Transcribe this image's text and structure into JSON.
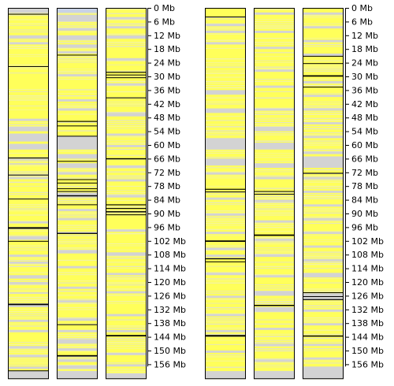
{
  "chart_data": {
    "type": "heatmap",
    "title": "",
    "xlabel": "",
    "ylabel": "",
    "grid": false,
    "legend": "none",
    "axis": {
      "ylim_mb": [
        0,
        160
      ],
      "ticks_mb": [
        0,
        6,
        12,
        18,
        24,
        30,
        36,
        42,
        48,
        54,
        60,
        66,
        72,
        78,
        84,
        90,
        96,
        102,
        108,
        114,
        120,
        126,
        132,
        138,
        144,
        150,
        156
      ],
      "tick_labels": [
        "0 Mb",
        "6 Mb",
        "12 Mb",
        "18 Mb",
        "24 Mb",
        "30 Mb",
        "36 Mb",
        "42 Mb",
        "48 Mb",
        "54 Mb",
        "60 Mb",
        "66 Mb",
        "72 Mb",
        "78 Mb",
        "84 Mb",
        "90 Mb",
        "96 Mb",
        "102 Mb",
        "108 Mb",
        "114 Mb",
        "120 Mb",
        "126 Mb",
        "132 Mb",
        "138 Mb",
        "144 Mb",
        "150 Mb",
        "156 Mb"
      ]
    },
    "colors": {
      "covered": "#ffff00",
      "uncovered": "#d3d3d3",
      "track_base": "#ffff5a",
      "marker": "#000000",
      "outline": "#000000",
      "first_track_top_band": "#c8d2e6"
    },
    "track_length_mb": 162.5,
    "tracks": [
      {
        "gray": [
          [
            0,
            2.2
          ],
          [
            12,
            13.5
          ],
          [
            15,
            16
          ],
          [
            48.5,
            49.5
          ],
          [
            52,
            54
          ],
          [
            55,
            58.5
          ],
          [
            59.5,
            62
          ],
          [
            66,
            66.8
          ],
          [
            68,
            68.6
          ],
          [
            74,
            75
          ],
          [
            93.5,
            94.2
          ],
          [
            100,
            101.5
          ],
          [
            108,
            109
          ],
          [
            111,
            112
          ],
          [
            117,
            118.5
          ],
          [
            120,
            121
          ],
          [
            124.5,
            125
          ],
          [
            130,
            131
          ],
          [
            136.5,
            137.5
          ],
          [
            141,
            142
          ],
          [
            148,
            149
          ],
          [
            152,
            153
          ],
          [
            157,
            158
          ],
          [
            159,
            162.5
          ]
        ],
        "lines": [
          [
            2.6,
            0.7
          ],
          [
            25.5,
            0.6
          ],
          [
            65.5,
            0.8
          ],
          [
            73,
            0.7
          ],
          [
            83.5,
            0.6
          ],
          [
            96,
            1.4
          ],
          [
            102,
            0.6
          ],
          [
            129.5,
            1.2
          ],
          [
            158.7,
            0.7
          ]
        ]
      },
      {
        "first_band_mb": 2.2,
        "gray": [
          [
            3,
            6
          ],
          [
            9,
            10
          ],
          [
            12,
            14
          ],
          [
            16,
            17.5
          ],
          [
            19,
            20
          ],
          [
            29,
            30
          ],
          [
            40,
            41
          ],
          [
            44,
            45
          ],
          [
            56,
            62
          ],
          [
            64,
            66
          ],
          [
            68,
            70
          ],
          [
            72,
            73
          ],
          [
            81,
            83
          ],
          [
            88,
            89
          ],
          [
            92,
            93
          ],
          [
            98,
            99
          ],
          [
            106,
            107.5
          ],
          [
            113,
            114
          ],
          [
            122,
            123
          ],
          [
            128,
            129
          ],
          [
            136,
            137
          ],
          [
            141,
            142
          ],
          [
            145,
            147
          ],
          [
            149,
            150
          ],
          [
            154,
            155
          ],
          [
            156.5,
            158
          ],
          [
            159,
            162.5
          ]
        ],
        "lines": [
          [
            20.5,
            0.6
          ],
          [
            49.5,
            0.8
          ],
          [
            51.5,
            0.6
          ],
          [
            56,
            0.6
          ],
          [
            67,
            0.6
          ],
          [
            75,
            0.7
          ],
          [
            76.5,
            0.7
          ],
          [
            79,
            0.6
          ],
          [
            80.2,
            0.6
          ],
          [
            82,
            1.0
          ],
          [
            86,
            0.6
          ],
          [
            98.5,
            0.9
          ],
          [
            138.5,
            0.6
          ],
          [
            152,
            1.2
          ]
        ]
      },
      {
        "gray": [
          [
            4,
            5
          ],
          [
            8,
            9
          ],
          [
            12,
            13.5
          ],
          [
            22,
            23
          ],
          [
            33,
            34
          ],
          [
            46,
            47.5
          ],
          [
            55,
            56
          ],
          [
            60,
            61
          ],
          [
            69,
            70
          ],
          [
            75,
            76
          ],
          [
            82,
            83
          ],
          [
            97,
            98
          ],
          [
            107,
            108.5
          ],
          [
            116,
            117
          ],
          [
            124,
            125
          ],
          [
            134,
            135
          ],
          [
            141,
            142
          ],
          [
            151,
            152
          ],
          [
            156,
            157
          ],
          [
            160,
            162.5
          ]
        ],
        "lines": [
          [
            28,
            0.8
          ],
          [
            29.2,
            0.7
          ],
          [
            30.4,
            0.6
          ],
          [
            39.2,
            0.7
          ],
          [
            65.8,
            1.0
          ],
          [
            86,
            0.8
          ],
          [
            87.6,
            0.8
          ],
          [
            89,
            1.0
          ],
          [
            90.4,
            0.7
          ],
          [
            143.2,
            1.2
          ]
        ]
      },
      {
        "gray": [
          [
            7,
            8
          ],
          [
            10,
            11
          ],
          [
            15,
            16
          ],
          [
            36,
            38
          ],
          [
            44,
            46
          ],
          [
            57,
            62
          ],
          [
            66,
            69
          ],
          [
            72,
            73
          ],
          [
            83,
            84
          ],
          [
            90,
            91
          ],
          [
            98,
            99
          ],
          [
            105,
            106
          ],
          [
            108,
            109
          ],
          [
            116,
            117
          ],
          [
            126,
            127
          ],
          [
            134,
            135
          ],
          [
            141,
            142
          ],
          [
            150,
            151
          ],
          [
            159,
            162.5
          ]
        ],
        "lines": [
          [
            3.8,
            0.7
          ],
          [
            79.2,
            0.8
          ],
          [
            80.4,
            0.6
          ],
          [
            101.8,
            1.2
          ],
          [
            109.6,
            0.9
          ],
          [
            111,
            0.7
          ],
          [
            143.2,
            1.4
          ]
        ]
      },
      {
        "gray": [
          [
            2,
            3
          ],
          [
            10,
            11
          ],
          [
            17,
            18
          ],
          [
            27,
            28
          ],
          [
            34,
            35
          ],
          [
            44,
            45
          ],
          [
            52,
            54
          ],
          [
            59,
            62
          ],
          [
            68,
            70
          ],
          [
            74,
            75
          ],
          [
            84,
            85
          ],
          [
            93,
            94
          ],
          [
            101,
            102
          ],
          [
            108,
            109
          ],
          [
            117,
            118
          ],
          [
            124,
            126
          ],
          [
            131,
            133
          ],
          [
            140,
            141
          ],
          [
            147,
            148
          ],
          [
            154,
            155
          ],
          [
            159,
            162.5
          ]
        ],
        "lines": [
          [
            80.2,
            0.7
          ],
          [
            81.4,
            0.6
          ],
          [
            99.2,
            1.2
          ],
          [
            130,
            1.0
          ]
        ]
      },
      {
        "gray": [
          [
            2,
            3
          ],
          [
            8,
            9
          ],
          [
            14,
            15
          ],
          [
            20,
            21
          ],
          [
            32,
            33
          ],
          [
            38,
            39
          ],
          [
            44,
            45
          ],
          [
            50,
            51
          ],
          [
            56,
            57
          ],
          [
            63,
            64
          ],
          [
            65,
            70
          ],
          [
            74,
            75
          ],
          [
            80,
            81
          ],
          [
            86,
            87
          ],
          [
            92,
            93
          ],
          [
            98,
            99
          ],
          [
            104,
            105
          ],
          [
            110,
            111
          ],
          [
            116,
            118
          ],
          [
            125,
            128
          ],
          [
            132,
            133
          ],
          [
            138,
            139
          ],
          [
            147,
            148
          ],
          [
            153,
            154
          ],
          [
            157,
            162.5
          ]
        ],
        "lines": [
          [
            21,
            0.6
          ],
          [
            24.2,
            0.6
          ],
          [
            29.5,
            1.2
          ],
          [
            34.5,
            0.6
          ],
          [
            72.2,
            0.8
          ],
          [
            124.5,
            0.7
          ],
          [
            126.2,
            0.6
          ],
          [
            127.5,
            0.8
          ],
          [
            143.4,
            1.0
          ]
        ]
      }
    ]
  }
}
